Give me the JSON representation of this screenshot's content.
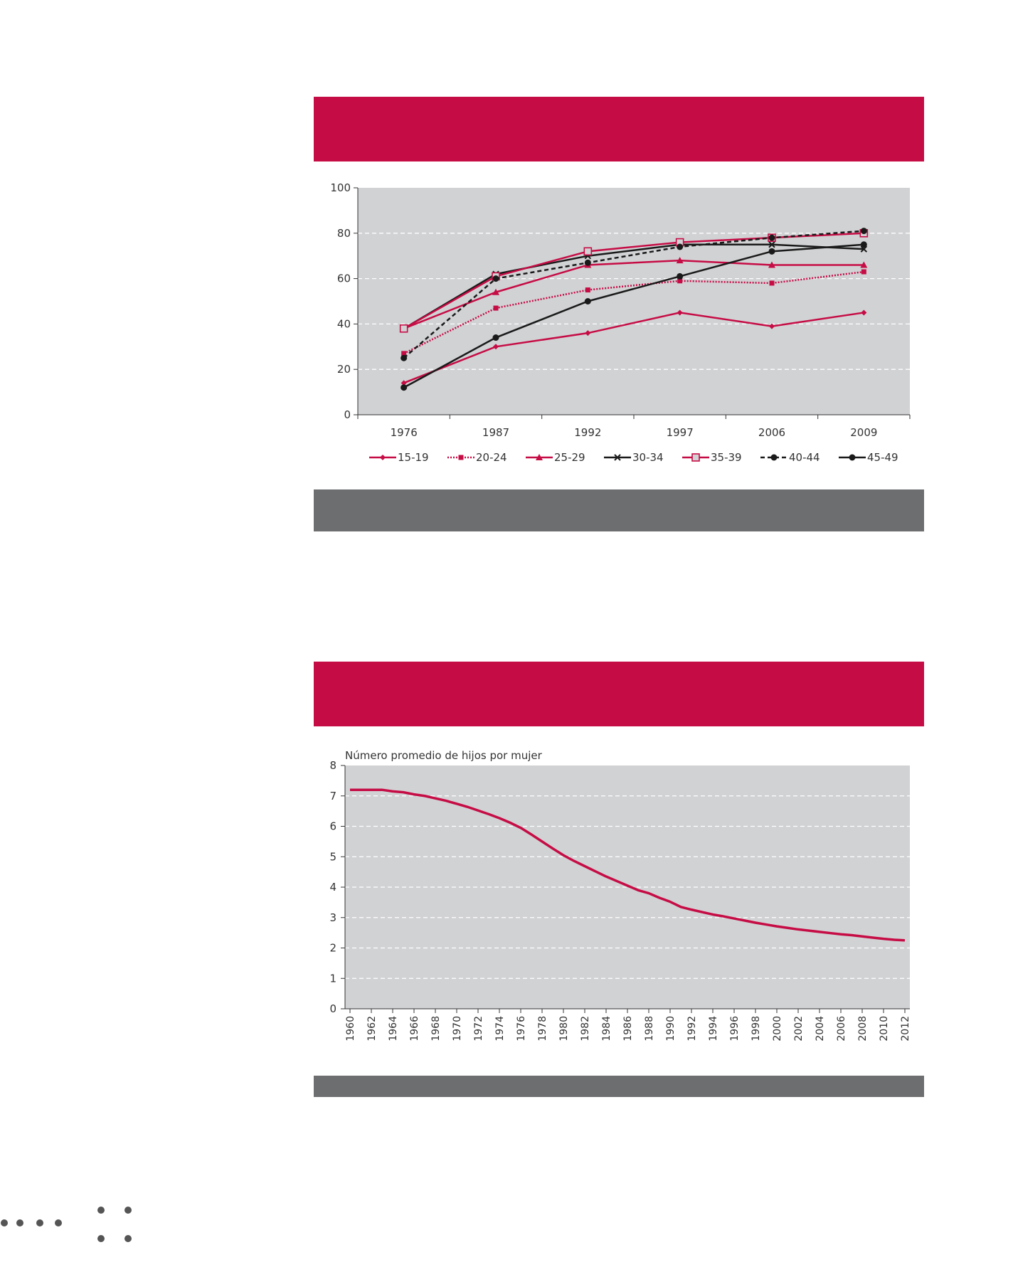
{
  "chart1": {
    "chart_data": {
      "type": "line",
      "categories": [
        "1976",
        "1987",
        "1992",
        "1997",
        "2006",
        "2009"
      ],
      "ylim": [
        0,
        100
      ],
      "yticks": [
        0,
        20,
        40,
        60,
        80,
        100
      ],
      "grid": true,
      "legend_position": "bottom",
      "series": [
        {
          "name": "15-19",
          "values": [
            14,
            30,
            36,
            45,
            39,
            45
          ],
          "color": "#c60c45",
          "dash": "solid",
          "marker": "diamond"
        },
        {
          "name": "20-24",
          "values": [
            27,
            47,
            55,
            59,
            58,
            63
          ],
          "color": "#c60c45",
          "dash": "dotted",
          "marker": "square"
        },
        {
          "name": "25-29",
          "values": [
            38,
            54,
            66,
            68,
            66,
            66
          ],
          "color": "#c60c45",
          "dash": "solid",
          "marker": "triangle"
        },
        {
          "name": "30-34",
          "values": [
            38,
            62,
            70,
            75,
            75,
            73
          ],
          "color": "#1a1a1a",
          "dash": "solid",
          "marker": "x"
        },
        {
          "name": "35-39",
          "values": [
            38,
            61,
            72,
            76,
            78,
            80
          ],
          "color": "#c60c45",
          "dash": "solid",
          "marker": "square-open"
        },
        {
          "name": "40-44",
          "values": [
            25,
            60,
            67,
            74,
            78,
            81
          ],
          "color": "#1a1a1a",
          "dash": "dashed",
          "marker": "circle"
        },
        {
          "name": "45-49",
          "values": [
            12,
            34,
            50,
            61,
            72,
            75
          ],
          "color": "#1a1a1a",
          "dash": "solid",
          "marker": "circle"
        }
      ]
    }
  },
  "chart2": {
    "chart_data": {
      "type": "line",
      "ylabel": "Número promedio de hijos por mujer",
      "ylim": [
        0,
        8
      ],
      "yticks": [
        0,
        1,
        2,
        3,
        4,
        5,
        6,
        7,
        8
      ],
      "xlim": [
        1960,
        2012
      ],
      "xticks": [
        "1960",
        "1962",
        "1964",
        "1966",
        "1968",
        "1970",
        "1972",
        "1974",
        "1976",
        "1978",
        "1980",
        "1982",
        "1984",
        "1986",
        "1988",
        "1990",
        "1992",
        "1994",
        "1996",
        "1998",
        "2000",
        "2002",
        "2004",
        "2006",
        "2008",
        "2010",
        "2012"
      ],
      "grid": true,
      "series": [
        {
          "color": "#c60c45",
          "x": [
            1960,
            1961,
            1962,
            1963,
            1964,
            1965,
            1966,
            1967,
            1968,
            1969,
            1970,
            1971,
            1972,
            1973,
            1974,
            1975,
            1976,
            1977,
            1978,
            1979,
            1980,
            1981,
            1982,
            1983,
            1984,
            1985,
            1986,
            1987,
            1988,
            1989,
            1990,
            1991,
            1992,
            1993,
            1994,
            1995,
            1996,
            1997,
            1998,
            1999,
            2000,
            2001,
            2002,
            2003,
            2004,
            2005,
            2006,
            2007,
            2008,
            2009,
            2010,
            2011,
            2012
          ],
          "values": [
            7.2,
            7.2,
            7.2,
            7.2,
            7.15,
            7.12,
            7.05,
            7.0,
            6.92,
            6.84,
            6.74,
            6.64,
            6.52,
            6.4,
            6.27,
            6.12,
            5.95,
            5.73,
            5.5,
            5.27,
            5.05,
            4.86,
            4.69,
            4.52,
            4.35,
            4.2,
            4.05,
            3.9,
            3.8,
            3.65,
            3.52,
            3.35,
            3.26,
            3.18,
            3.1,
            3.04,
            2.97,
            2.9,
            2.83,
            2.77,
            2.71,
            2.66,
            2.61,
            2.57,
            2.53,
            2.49,
            2.45,
            2.42,
            2.38,
            2.34,
            2.3,
            2.27,
            2.25
          ]
        }
      ]
    }
  }
}
